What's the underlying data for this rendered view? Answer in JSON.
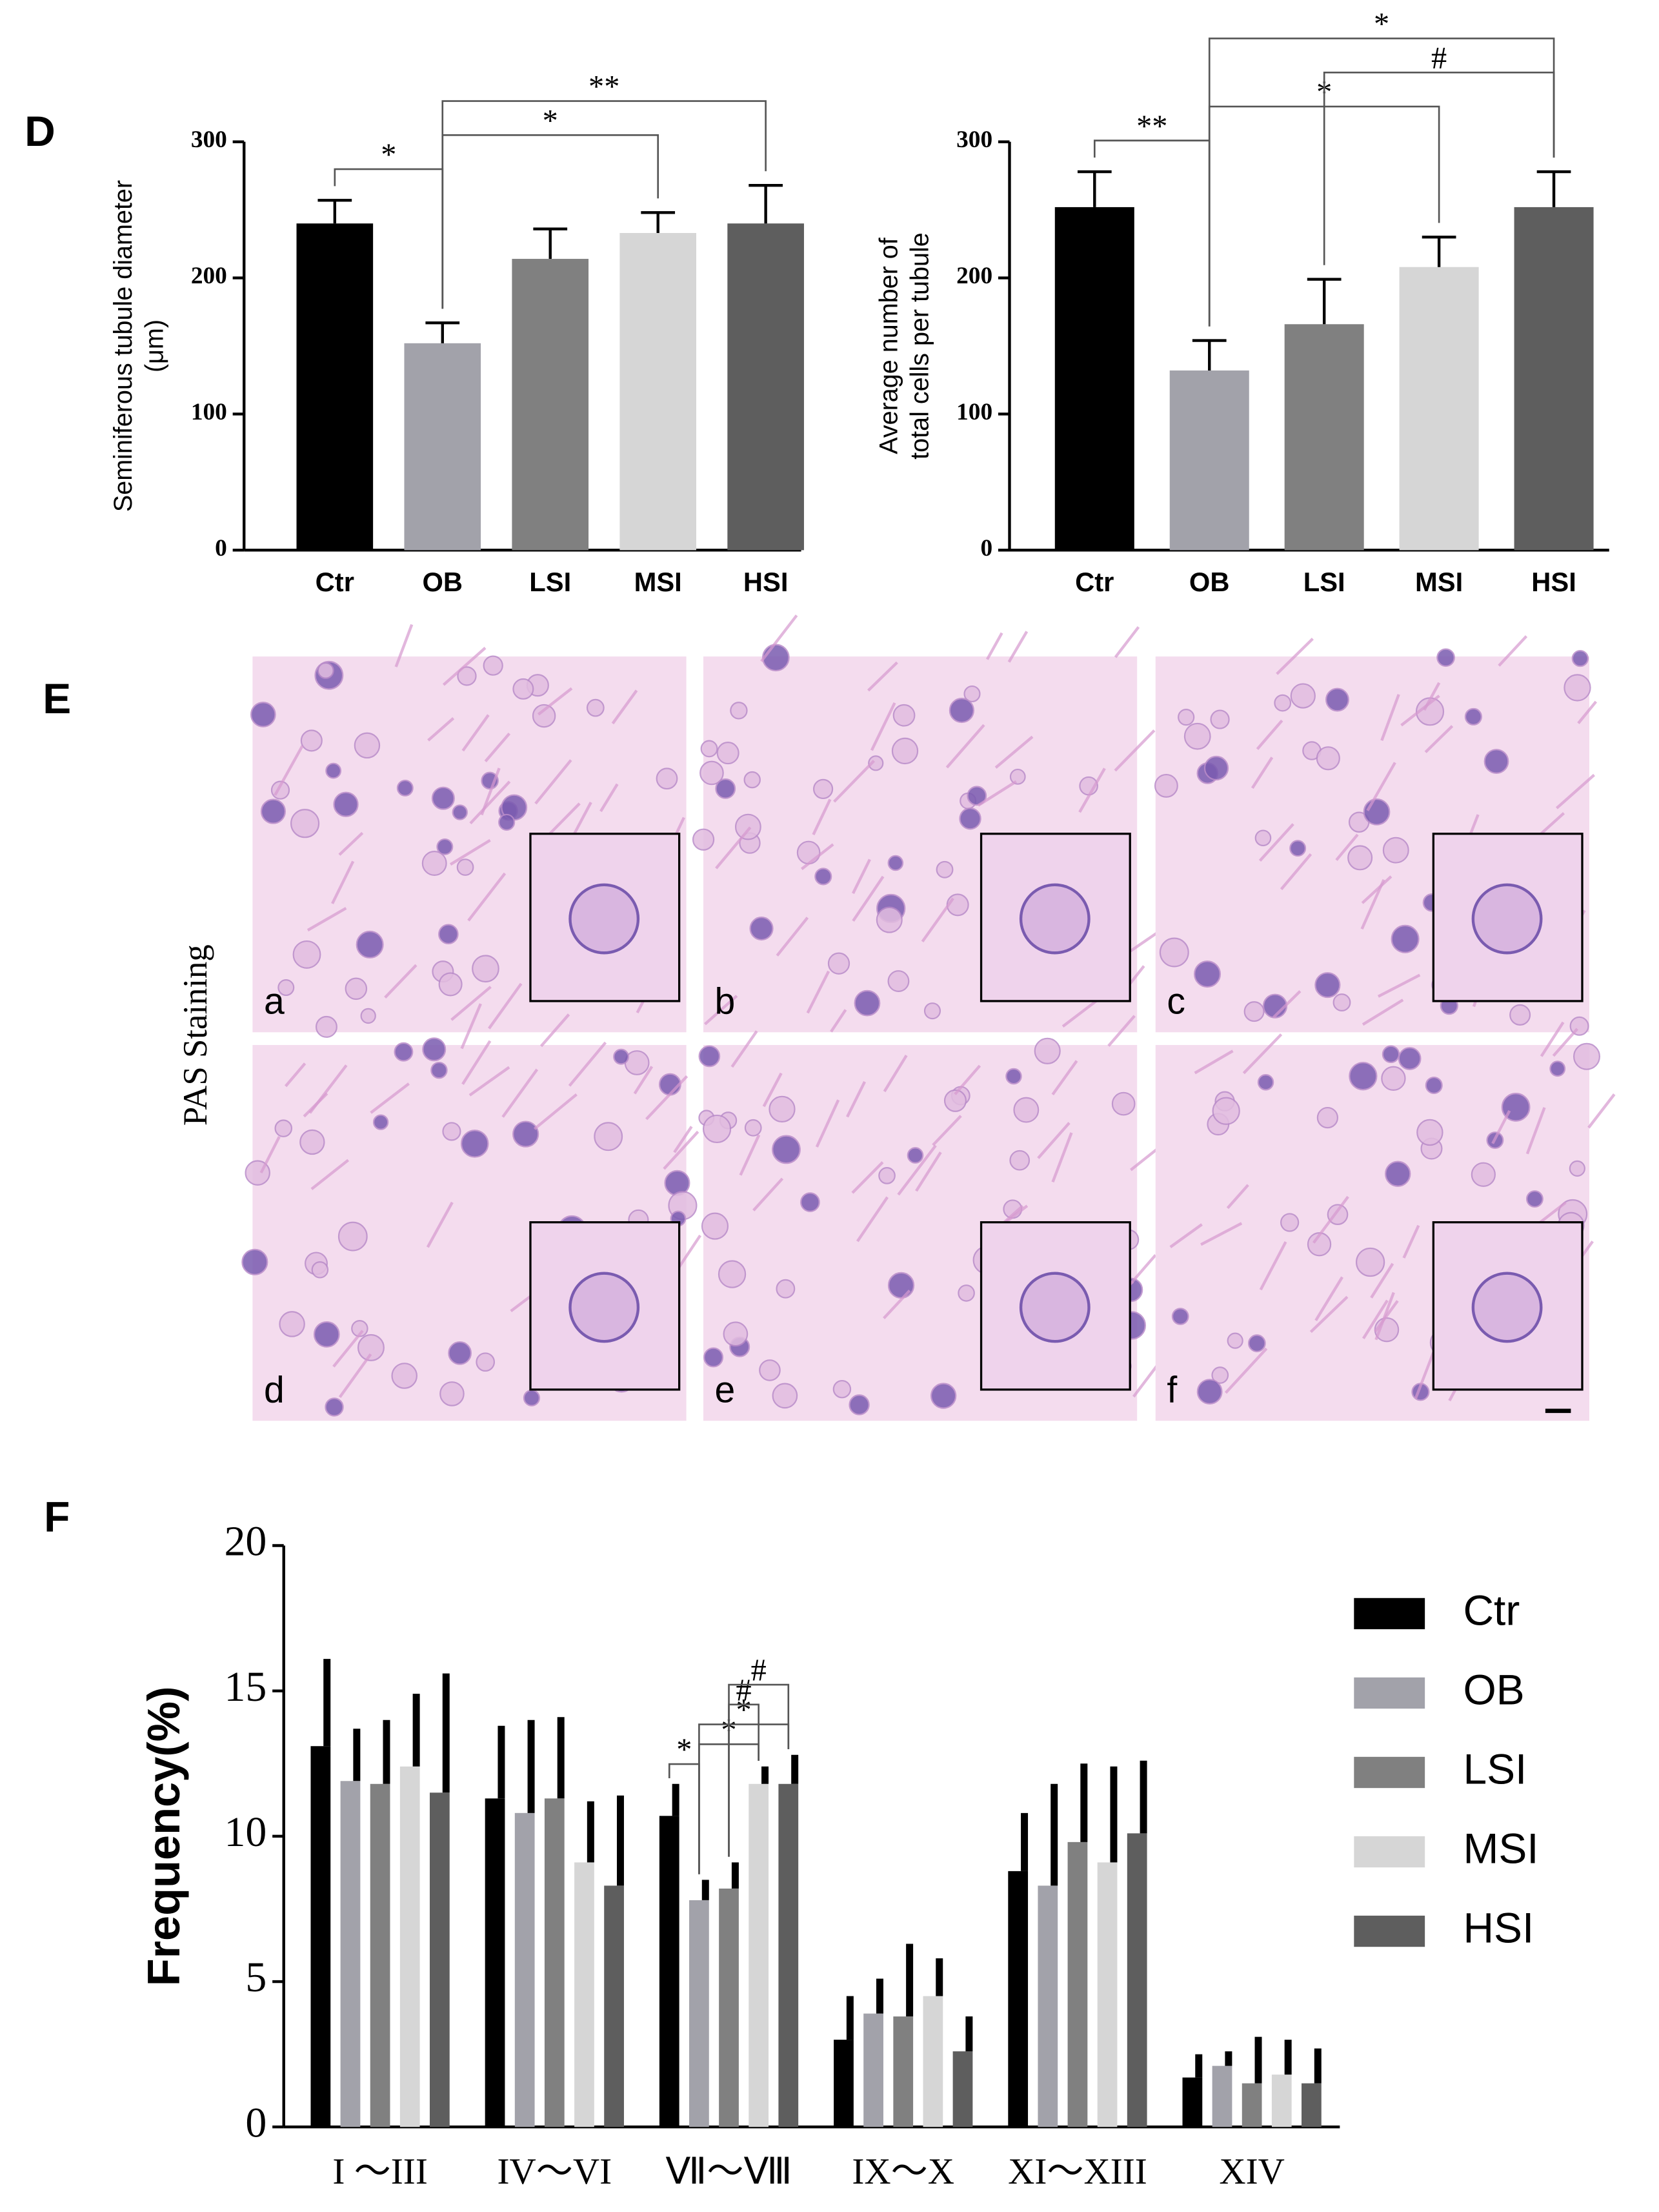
{
  "chart_data": [
    {
      "type": "bar",
      "panel_label": "D",
      "ylabel": [
        "Seminiferous tubule diameter",
        "(μm)"
      ],
      "categories": [
        "Ctr",
        "OB",
        "LSI",
        "MSI",
        "HSI"
      ],
      "values": [
        240,
        152,
        214,
        233,
        240
      ],
      "errors": [
        17,
        15,
        22,
        15,
        28
      ],
      "colors": [
        "#000000",
        "#a2a2aa",
        "#808080",
        "#d6d6d6",
        "#5e5e5e"
      ],
      "ylim": [
        0,
        300
      ],
      "yticks": [
        0,
        100,
        200,
        300
      ],
      "annotations": [
        {
          "text": "*",
          "from": 0,
          "to": 1
        },
        {
          "text": "*",
          "from": 1,
          "to": 3
        },
        {
          "text": "**",
          "from": 1,
          "to": 4
        }
      ]
    },
    {
      "type": "bar",
      "ylabel": [
        "Average number of",
        "total cells per tubule"
      ],
      "categories": [
        "Ctr",
        "OB",
        "LSI",
        "MSI",
        "HSI"
      ],
      "values": [
        252,
        132,
        166,
        208,
        252
      ],
      "errors": [
        26,
        22,
        33,
        22,
        26
      ],
      "colors": [
        "#000000",
        "#a2a2aa",
        "#808080",
        "#d6d6d6",
        "#5e5e5e"
      ],
      "ylim": [
        0,
        300
      ],
      "yticks": [
        0,
        100,
        200,
        300
      ],
      "annotations": [
        {
          "text": "**",
          "from": 0,
          "to": 1
        },
        {
          "text": "*",
          "from": 1,
          "to": 3
        },
        {
          "text": "#",
          "from": 2,
          "to": 4
        },
        {
          "text": "*",
          "from": 1,
          "to": 4
        }
      ]
    },
    {
      "type": "grouped_bar",
      "panel_label": "F",
      "ylabel": "Frequency(%)",
      "categories": [
        "I ～III",
        "IV～VI",
        "Ⅶ～Ⅷ",
        "IX～X",
        "XI～XIII",
        "XIV"
      ],
      "series": [
        {
          "name": "Ctr",
          "color": "#000000",
          "values": [
            13.1,
            11.3,
            10.7,
            3.0,
            8.8,
            1.7
          ],
          "errors": [
            3.0,
            2.5,
            1.1,
            1.5,
            2.0,
            0.8
          ]
        },
        {
          "name": "OB",
          "color": "#a2a2aa",
          "values": [
            11.9,
            10.8,
            7.8,
            3.9,
            8.3,
            2.1
          ],
          "errors": [
            1.8,
            3.2,
            0.7,
            1.2,
            3.5,
            0.5
          ]
        },
        {
          "name": "LSI",
          "color": "#808080",
          "values": [
            11.8,
            11.3,
            8.2,
            3.8,
            9.8,
            1.5
          ],
          "errors": [
            2.2,
            2.8,
            0.9,
            2.5,
            2.7,
            1.6
          ]
        },
        {
          "name": "MSI",
          "color": "#d6d6d6",
          "values": [
            12.4,
            9.1,
            11.8,
            4.5,
            9.1,
            1.8
          ],
          "errors": [
            2.5,
            2.1,
            0.6,
            1.3,
            3.3,
            1.2
          ]
        },
        {
          "name": "HSI",
          "color": "#5e5e5e",
          "values": [
            11.5,
            8.3,
            11.8,
            2.6,
            10.1,
            1.5
          ],
          "errors": [
            4.1,
            3.1,
            1.0,
            1.2,
            2.5,
            1.2
          ]
        }
      ],
      "ylim": [
        0,
        20
      ],
      "yticks": [
        0,
        5,
        10,
        15,
        20
      ],
      "annotations": [
        {
          "text": "*",
          "category": 2,
          "from": 0,
          "to": 1
        },
        {
          "text": "*",
          "category": 2,
          "from": 1,
          "to": 3
        },
        {
          "text": "*",
          "category": 2,
          "from": 1,
          "to": 4
        },
        {
          "text": "#",
          "category": 2,
          "from": 2,
          "to": 3
        },
        {
          "text": "#",
          "category": 2,
          "from": 2,
          "to": 4
        }
      ]
    }
  ],
  "panel_e": {
    "label": "E",
    "side_label": "PAS Staining",
    "images": [
      "a",
      "b",
      "c",
      "d",
      "e",
      "f"
    ]
  }
}
